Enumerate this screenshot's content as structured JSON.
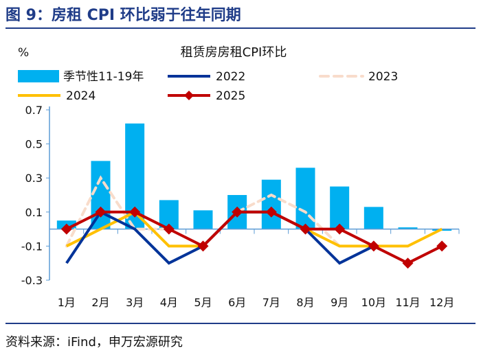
{
  "header": {
    "title": "图 9：房租 CPI 环比弱于往年同期"
  },
  "footer": {
    "source": "资料来源：iFind，申万宏源研究"
  },
  "chart_data": {
    "type": "bar+line",
    "title": "租赁房房租CPI环比",
    "ylabel": "%",
    "ylim": [
      -0.3,
      0.7
    ],
    "yticks": [
      0.7,
      0.5,
      0.3,
      0.1,
      -0.1,
      -0.3
    ],
    "categories": [
      "1月",
      "2月",
      "3月",
      "4月",
      "5月",
      "6月",
      "7月",
      "8月",
      "9月",
      "10月",
      "11月",
      "12月"
    ],
    "legend_position": "top",
    "grid": false,
    "series": [
      {
        "name": "季节性11-19年",
        "kind": "bar",
        "color": "#00b0f0",
        "values": [
          0.05,
          0.4,
          0.62,
          0.17,
          0.11,
          0.2,
          0.29,
          0.36,
          0.25,
          0.13,
          0.01,
          -0.01
        ]
      },
      {
        "name": "2022",
        "kind": "line",
        "color": "#003399",
        "values": [
          -0.2,
          0.1,
          0.0,
          -0.2,
          -0.1,
          0.1,
          0.1,
          0.0,
          -0.2,
          -0.1,
          null,
          null
        ]
      },
      {
        "name": "2023",
        "kind": "dashed",
        "color": "#f8dccb",
        "values": [
          -0.1,
          0.3,
          0.0,
          0.0,
          null,
          0.1,
          0.2,
          0.1,
          -0.1,
          null,
          null,
          null
        ]
      },
      {
        "name": "2024",
        "kind": "line",
        "color": "#ffc000",
        "values": [
          -0.1,
          0.0,
          0.1,
          -0.1,
          -0.1,
          0.1,
          0.1,
          0.0,
          -0.1,
          -0.1,
          -0.1,
          0.0
        ]
      },
      {
        "name": "2025",
        "kind": "marker-line",
        "color": "#c00000",
        "values": [
          0.0,
          0.1,
          0.1,
          0.0,
          -0.1,
          0.1,
          0.1,
          0.0,
          0.0,
          -0.1,
          -0.2,
          -0.1
        ]
      }
    ]
  }
}
